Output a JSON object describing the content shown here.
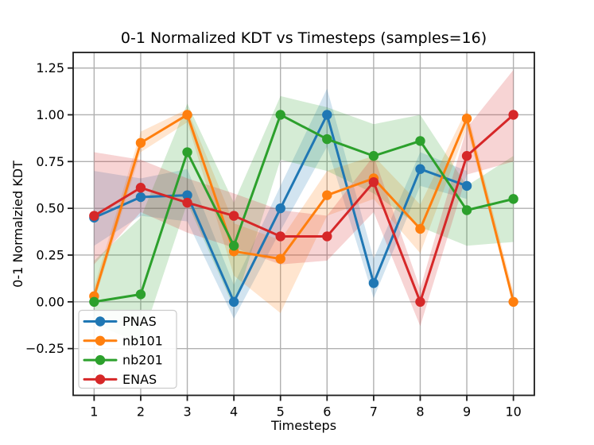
{
  "chart_data": {
    "type": "line",
    "title": "0-1 Normalized KDT vs Timesteps (samples=16)",
    "xlabel": "Timesteps",
    "ylabel": "0-1 Normalzied KDT",
    "grid": true,
    "legend_position": "lower left",
    "xlim": [
      0.55,
      10.45
    ],
    "ylim": [
      -0.5,
      1.3334
    ],
    "xticks": {
      "values": [
        1,
        2,
        3,
        4,
        5,
        6,
        7,
        8,
        9,
        10
      ],
      "labels": [
        "1",
        "2",
        "3",
        "4",
        "5",
        "6",
        "7",
        "8",
        "9",
        "10"
      ]
    },
    "yticks": {
      "values": [
        -0.25,
        0.0,
        0.25,
        0.5,
        0.75,
        1.0,
        1.25
      ],
      "labels": [
        "−0.25",
        "0.00",
        "0.25",
        "0.50",
        "0.75",
        "1.00",
        "1.25"
      ]
    },
    "band_opacity": 0.2,
    "grid_color": "#b0b0b0",
    "axis_color": "#1c1c1c",
    "legend_border_color": "#cccccc",
    "background_color": "#ffffff",
    "series": [
      {
        "name": "PNAS",
        "color": "#1f77b4",
        "x": [
          1,
          2,
          3,
          4,
          5,
          6,
          7,
          8,
          9
        ],
        "values": [
          0.45,
          0.56,
          0.57,
          0.0,
          0.5,
          1.0,
          0.1,
          0.71,
          0.62
        ],
        "band_lower": [
          0.3,
          0.46,
          0.43,
          -0.09,
          0.38,
          0.83,
          0.02,
          0.62,
          0.55
        ],
        "band_upper": [
          0.7,
          0.66,
          0.71,
          0.09,
          0.62,
          1.14,
          0.23,
          0.8,
          0.7
        ]
      },
      {
        "name": "nb101",
        "color": "#ff7f0e",
        "x": [
          1,
          2,
          3,
          4,
          5,
          6,
          7,
          8,
          9,
          10
        ],
        "values": [
          0.03,
          0.85,
          1.0,
          0.27,
          0.23,
          0.57,
          0.66,
          0.39,
          0.98,
          0.0
        ],
        "band_lower": [
          0.0,
          0.8,
          0.96,
          0.14,
          -0.06,
          0.46,
          0.55,
          0.26,
          0.93,
          -0.01
        ],
        "band_upper": [
          0.08,
          0.91,
          1.03,
          0.42,
          0.33,
          0.7,
          0.78,
          0.52,
          1.03,
          0.05
        ]
      },
      {
        "name": "nb201",
        "color": "#2ca02c",
        "x": [
          1,
          2,
          3,
          4,
          5,
          6,
          7,
          8,
          9,
          10
        ],
        "values": [
          0.0,
          0.04,
          0.8,
          0.3,
          1.0,
          0.87,
          0.78,
          0.86,
          0.49,
          0.55
        ],
        "band_lower": [
          -0.12,
          -0.22,
          0.53,
          -0.03,
          0.76,
          0.7,
          0.58,
          0.4,
          0.3,
          0.32
        ],
        "band_upper": [
          0.22,
          0.45,
          1.06,
          0.53,
          1.1,
          1.04,
          0.95,
          1.0,
          0.62,
          0.78
        ]
      },
      {
        "name": "ENAS",
        "color": "#d62728",
        "x": [
          1,
          2,
          3,
          4,
          5,
          6,
          7,
          8,
          9,
          10
        ],
        "values": [
          0.46,
          0.61,
          0.53,
          0.46,
          0.35,
          0.35,
          0.64,
          0.0,
          0.78,
          1.0
        ],
        "band_lower": [
          0.2,
          0.48,
          0.37,
          0.29,
          0.2,
          0.22,
          0.48,
          -0.13,
          0.68,
          0.75
        ],
        "band_upper": [
          0.8,
          0.76,
          0.66,
          0.58,
          0.49,
          0.46,
          0.78,
          0.07,
          0.93,
          1.24
        ]
      }
    ]
  }
}
